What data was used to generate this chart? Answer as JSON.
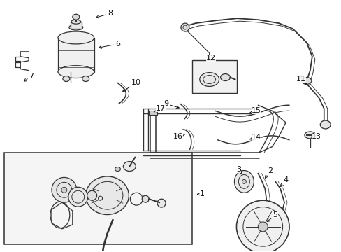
{
  "bg_color": "#ffffff",
  "fig_width": 4.89,
  "fig_height": 3.6,
  "dpi": 100,
  "ec": "#333333",
  "lw": 0.9
}
